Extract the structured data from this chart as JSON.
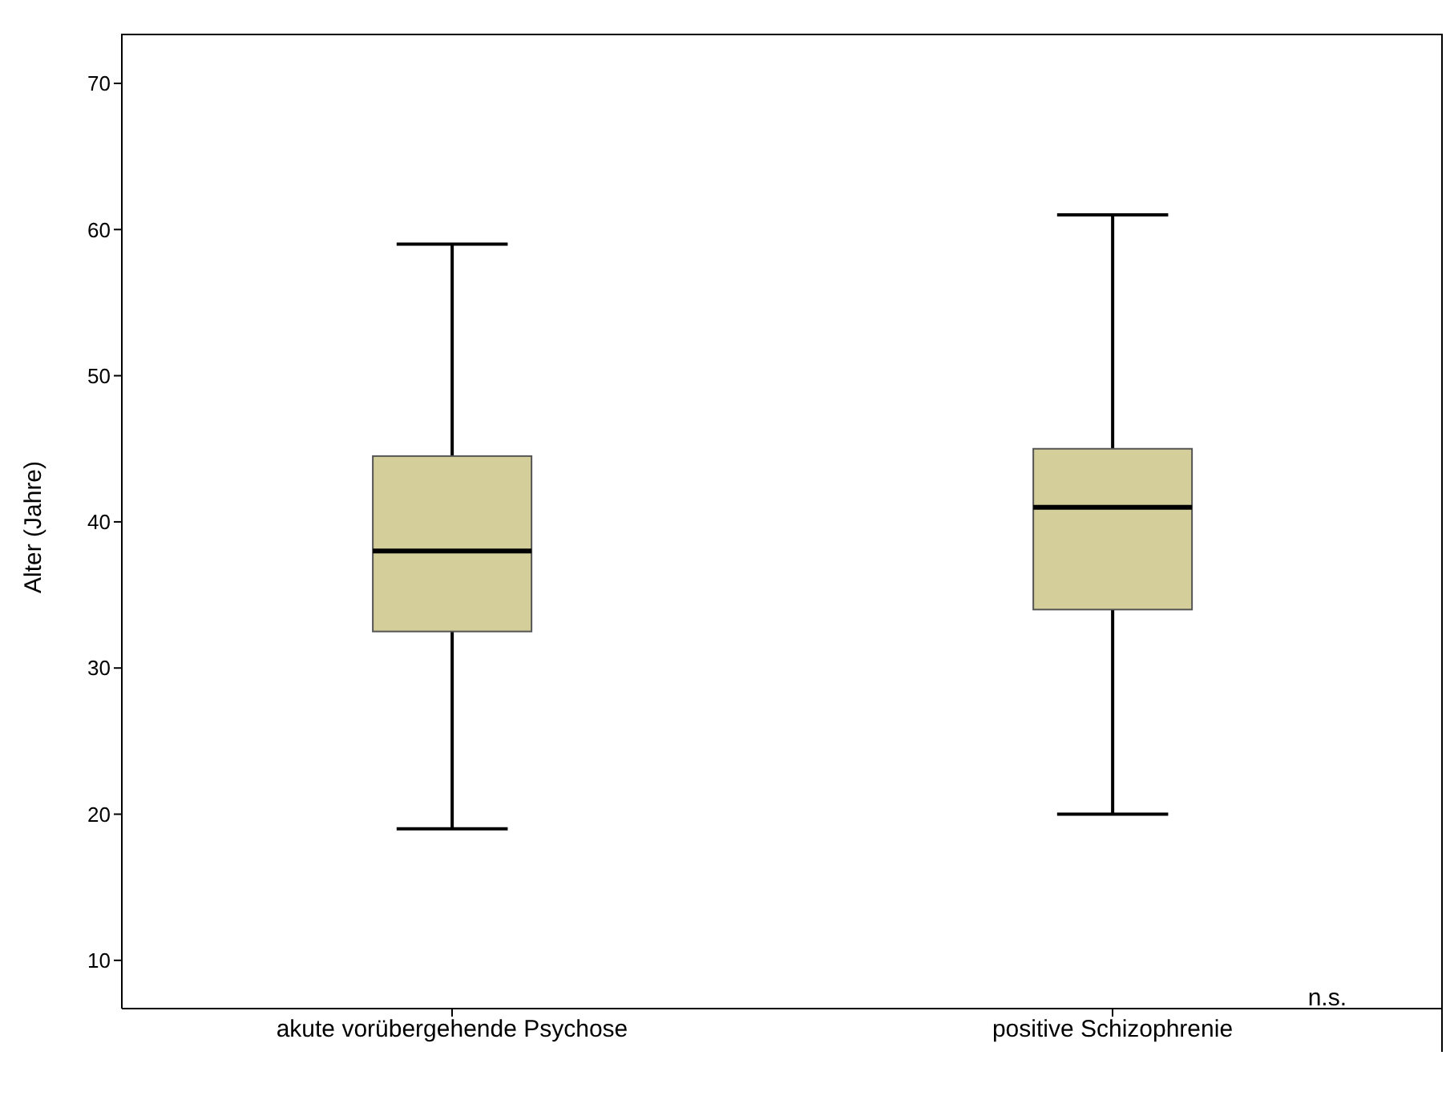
{
  "chart_data": {
    "type": "box",
    "ylabel": "Alter (Jahre)",
    "categories": [
      "akute vorübergehende Psychose",
      "positive Schizophrenie"
    ],
    "boxes": [
      {
        "low": 19,
        "q1": 32.5,
        "median": 38,
        "q3": 44.5,
        "high": 59
      },
      {
        "low": 20,
        "q1": 34,
        "median": 41,
        "q3": 45,
        "high": 61
      }
    ],
    "color": "#d3ce9a",
    "ylim": [
      6.7,
      73.4
    ],
    "yticks": [
      10,
      20,
      30,
      40,
      50,
      60,
      70
    ],
    "annotations": [
      "n.s."
    ]
  }
}
